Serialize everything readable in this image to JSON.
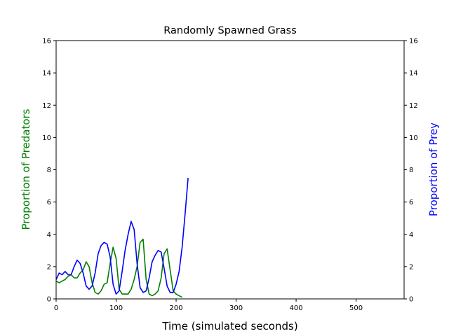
{
  "chart_data": {
    "type": "line",
    "title": "Randomly Spawned Grass",
    "xlabel": "Time (simulated seconds)",
    "ylabel_left": "Proportion of Predators",
    "ylabel_right": "Proportion of Prey",
    "xlim": [
      0,
      580
    ],
    "ylim": [
      0,
      16
    ],
    "xticks": [
      "0",
      "100",
      "200",
      "300",
      "400",
      "500"
    ],
    "yticks": [
      "0",
      "2",
      "4",
      "6",
      "8",
      "10",
      "12",
      "14",
      "16"
    ],
    "grid": false,
    "colors": {
      "predators": "#008000",
      "prey": "#0000ff",
      "axis_predators_label": "#008000",
      "axis_prey_label": "#0000ff"
    },
    "series": [
      {
        "key": "predators",
        "axis": "left",
        "x": [
          0,
          5,
          10,
          15,
          20,
          25,
          30,
          35,
          40,
          45,
          50,
          55,
          60,
          65,
          70,
          75,
          80,
          85,
          90,
          95,
          100,
          105,
          110,
          115,
          120,
          125,
          130,
          135,
          140,
          145,
          150,
          155,
          160,
          165,
          170,
          175,
          180,
          185,
          190,
          195,
          200,
          205,
          210
        ],
        "values": [
          1.1,
          1.0,
          1.1,
          1.2,
          1.4,
          1.5,
          1.3,
          1.3,
          1.6,
          1.8,
          2.3,
          2.0,
          1.0,
          0.4,
          0.3,
          0.5,
          0.9,
          1.0,
          2.2,
          3.2,
          2.5,
          0.6,
          0.3,
          0.3,
          0.3,
          0.6,
          1.2,
          2.0,
          3.5,
          3.7,
          1.2,
          0.3,
          0.2,
          0.3,
          0.5,
          1.3,
          2.8,
          3.1,
          1.8,
          0.5,
          0.3,
          0.2,
          0.1
        ]
      },
      {
        "key": "prey",
        "axis": "right",
        "x": [
          0,
          5,
          10,
          15,
          20,
          25,
          30,
          35,
          40,
          45,
          50,
          55,
          60,
          65,
          70,
          75,
          80,
          85,
          90,
          95,
          100,
          105,
          110,
          115,
          120,
          125,
          130,
          135,
          140,
          145,
          150,
          155,
          160,
          165,
          170,
          175,
          180,
          185,
          190,
          195,
          200,
          205,
          210,
          215,
          220
        ],
        "values": [
          1.2,
          1.6,
          1.5,
          1.7,
          1.5,
          1.5,
          2.0,
          2.4,
          2.2,
          1.6,
          0.8,
          0.6,
          0.8,
          1.6,
          2.8,
          3.3,
          3.5,
          3.4,
          2.6,
          0.9,
          0.3,
          0.5,
          1.7,
          3.0,
          4.0,
          4.8,
          4.3,
          2.2,
          0.7,
          0.4,
          0.5,
          1.3,
          2.3,
          2.7,
          3.0,
          2.9,
          1.9,
          0.8,
          0.4,
          0.4,
          0.9,
          1.7,
          3.2,
          5.3,
          7.5
        ]
      }
    ]
  }
}
